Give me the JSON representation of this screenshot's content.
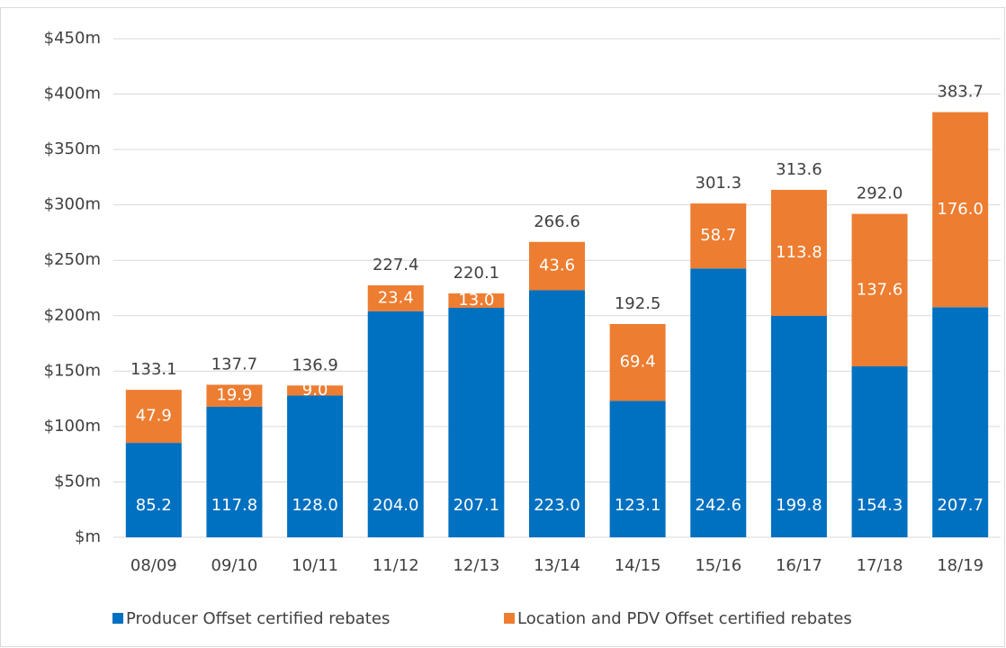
{
  "chart_data": {
    "type": "stacked-bar",
    "categories": [
      "08/09",
      "09/10",
      "10/11",
      "11/12",
      "12/13",
      "13/14",
      "14/15",
      "15/16",
      "16/17",
      "17/18",
      "18/19"
    ],
    "series": [
      {
        "name": "Producer Offset certified rebates",
        "color": "#0070c0",
        "values": [
          85.2,
          117.8,
          128.0,
          204.0,
          207.1,
          223.0,
          123.1,
          242.6,
          199.8,
          154.3,
          207.7
        ],
        "value_labels": [
          "85.2",
          "117.8",
          "128.0",
          "204.0",
          "207.1",
          "223.0",
          "123.1",
          "242.6",
          "199.8",
          "154.3",
          "207.7"
        ]
      },
      {
        "name": "Location and PDV Offset certified rebates",
        "color": "#ed7d31",
        "values": [
          47.9,
          19.9,
          9.0,
          23.4,
          13.0,
          43.6,
          69.4,
          58.7,
          113.8,
          137.6,
          176.0
        ],
        "value_labels": [
          "47.9",
          "19.9",
          "9.0",
          "23.4",
          "13.0",
          "43.6",
          "69.4",
          "58.7",
          "113.8",
          "137.6",
          "176.0"
        ]
      }
    ],
    "totals": [
      133.1,
      137.7,
      136.9,
      227.4,
      220.1,
      266.6,
      192.5,
      301.3,
      313.6,
      292.0,
      383.7
    ],
    "total_labels": [
      "133.1",
      "137.7",
      "136.9",
      "227.4",
      "220.1",
      "266.6",
      "192.5",
      "301.3",
      "313.6",
      "292.0",
      "383.7"
    ],
    "ylim": [
      0,
      450
    ],
    "yticks": [
      {
        "value": 0,
        "label": "$m"
      },
      {
        "value": 50,
        "label": "$50m"
      },
      {
        "value": 100,
        "label": "$100m"
      },
      {
        "value": 150,
        "label": "$150m"
      },
      {
        "value": 200,
        "label": "$200m"
      },
      {
        "value": 250,
        "label": "$250m"
      },
      {
        "value": 300,
        "label": "$300m"
      },
      {
        "value": 350,
        "label": "$350m"
      },
      {
        "value": 400,
        "label": "$400m"
      },
      {
        "value": 450,
        "label": "$450m"
      }
    ],
    "grid": true,
    "legend": "bottom"
  }
}
